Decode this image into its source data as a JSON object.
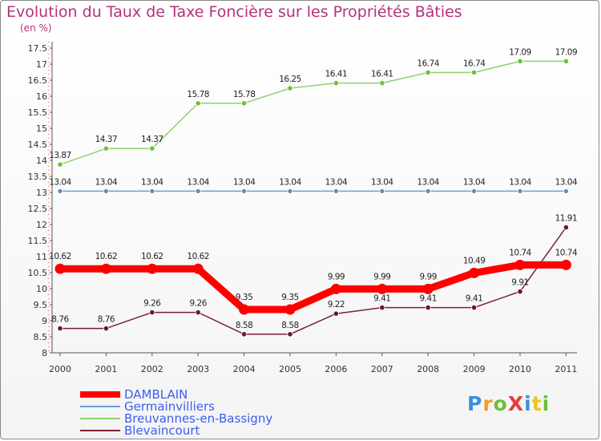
{
  "title": "Evolution du Taux de Taxe Foncière sur les Propriétés Bâties",
  "unit_label": "(en %)",
  "logo_text": "ProXiti",
  "chart_data": {
    "type": "line",
    "x": [
      "2000",
      "2001",
      "2002",
      "2003",
      "2004",
      "2005",
      "2006",
      "2007",
      "2008",
      "2009",
      "2010",
      "2011"
    ],
    "ylim": [
      8,
      17.5
    ],
    "yticks": [
      "8",
      "8.5",
      "9",
      "9.5",
      "10",
      "10.5",
      "11",
      "11.5",
      "12",
      "12.5",
      "13",
      "13.5",
      "14",
      "14.5",
      "15",
      "15.5",
      "16",
      "16.5",
      "17",
      "17.5"
    ],
    "grid": false,
    "legend_position": "bottom-left",
    "series": [
      {
        "name": "DAMBLAIN",
        "color": "#ff0000",
        "values": [
          10.62,
          10.62,
          10.62,
          10.62,
          9.35,
          9.35,
          9.99,
          9.99,
          9.99,
          10.49,
          10.74,
          10.74
        ],
        "labels": [
          "10.62",
          "10.62",
          "10.62",
          "10.62",
          "9.35",
          "9.35",
          "9.99",
          "9.99",
          "9.99",
          "10.49",
          "10.74",
          "10.74"
        ]
      },
      {
        "name": "Germainvilliers",
        "color": "#6b9fd0",
        "values": [
          13.04,
          13.04,
          13.04,
          13.04,
          13.04,
          13.04,
          13.04,
          13.04,
          13.04,
          13.04,
          13.04,
          13.04
        ],
        "labels": [
          "13.04",
          "13.04",
          "13.04",
          "13.04",
          "13.04",
          "13.04",
          "13.04",
          "13.04",
          "13.04",
          "13.04",
          "13.04",
          "13.04"
        ]
      },
      {
        "name": "Breuvannes-en-Bassigny",
        "color": "#8ed36b",
        "values": [
          13.87,
          14.37,
          14.37,
          15.78,
          15.78,
          16.25,
          16.41,
          16.41,
          16.74,
          16.74,
          17.09,
          17.09
        ],
        "labels": [
          "13.87",
          "14.37",
          "14.37",
          "15.78",
          "15.78",
          "16.25",
          "16.41",
          "16.41",
          "16.74",
          "16.74",
          "17.09",
          "17.09"
        ]
      },
      {
        "name": "Blevaincourt",
        "color": "#7a2230",
        "values": [
          8.76,
          8.76,
          9.26,
          9.26,
          8.58,
          8.58,
          9.22,
          9.41,
          9.41,
          9.41,
          9.91,
          11.91
        ],
        "labels": [
          "8.76",
          "8.76",
          "9.26",
          "9.26",
          "8.58",
          "8.58",
          "9.22",
          "9.41",
          "9.41",
          "9.41",
          "9.91",
          "11.91"
        ]
      }
    ]
  }
}
